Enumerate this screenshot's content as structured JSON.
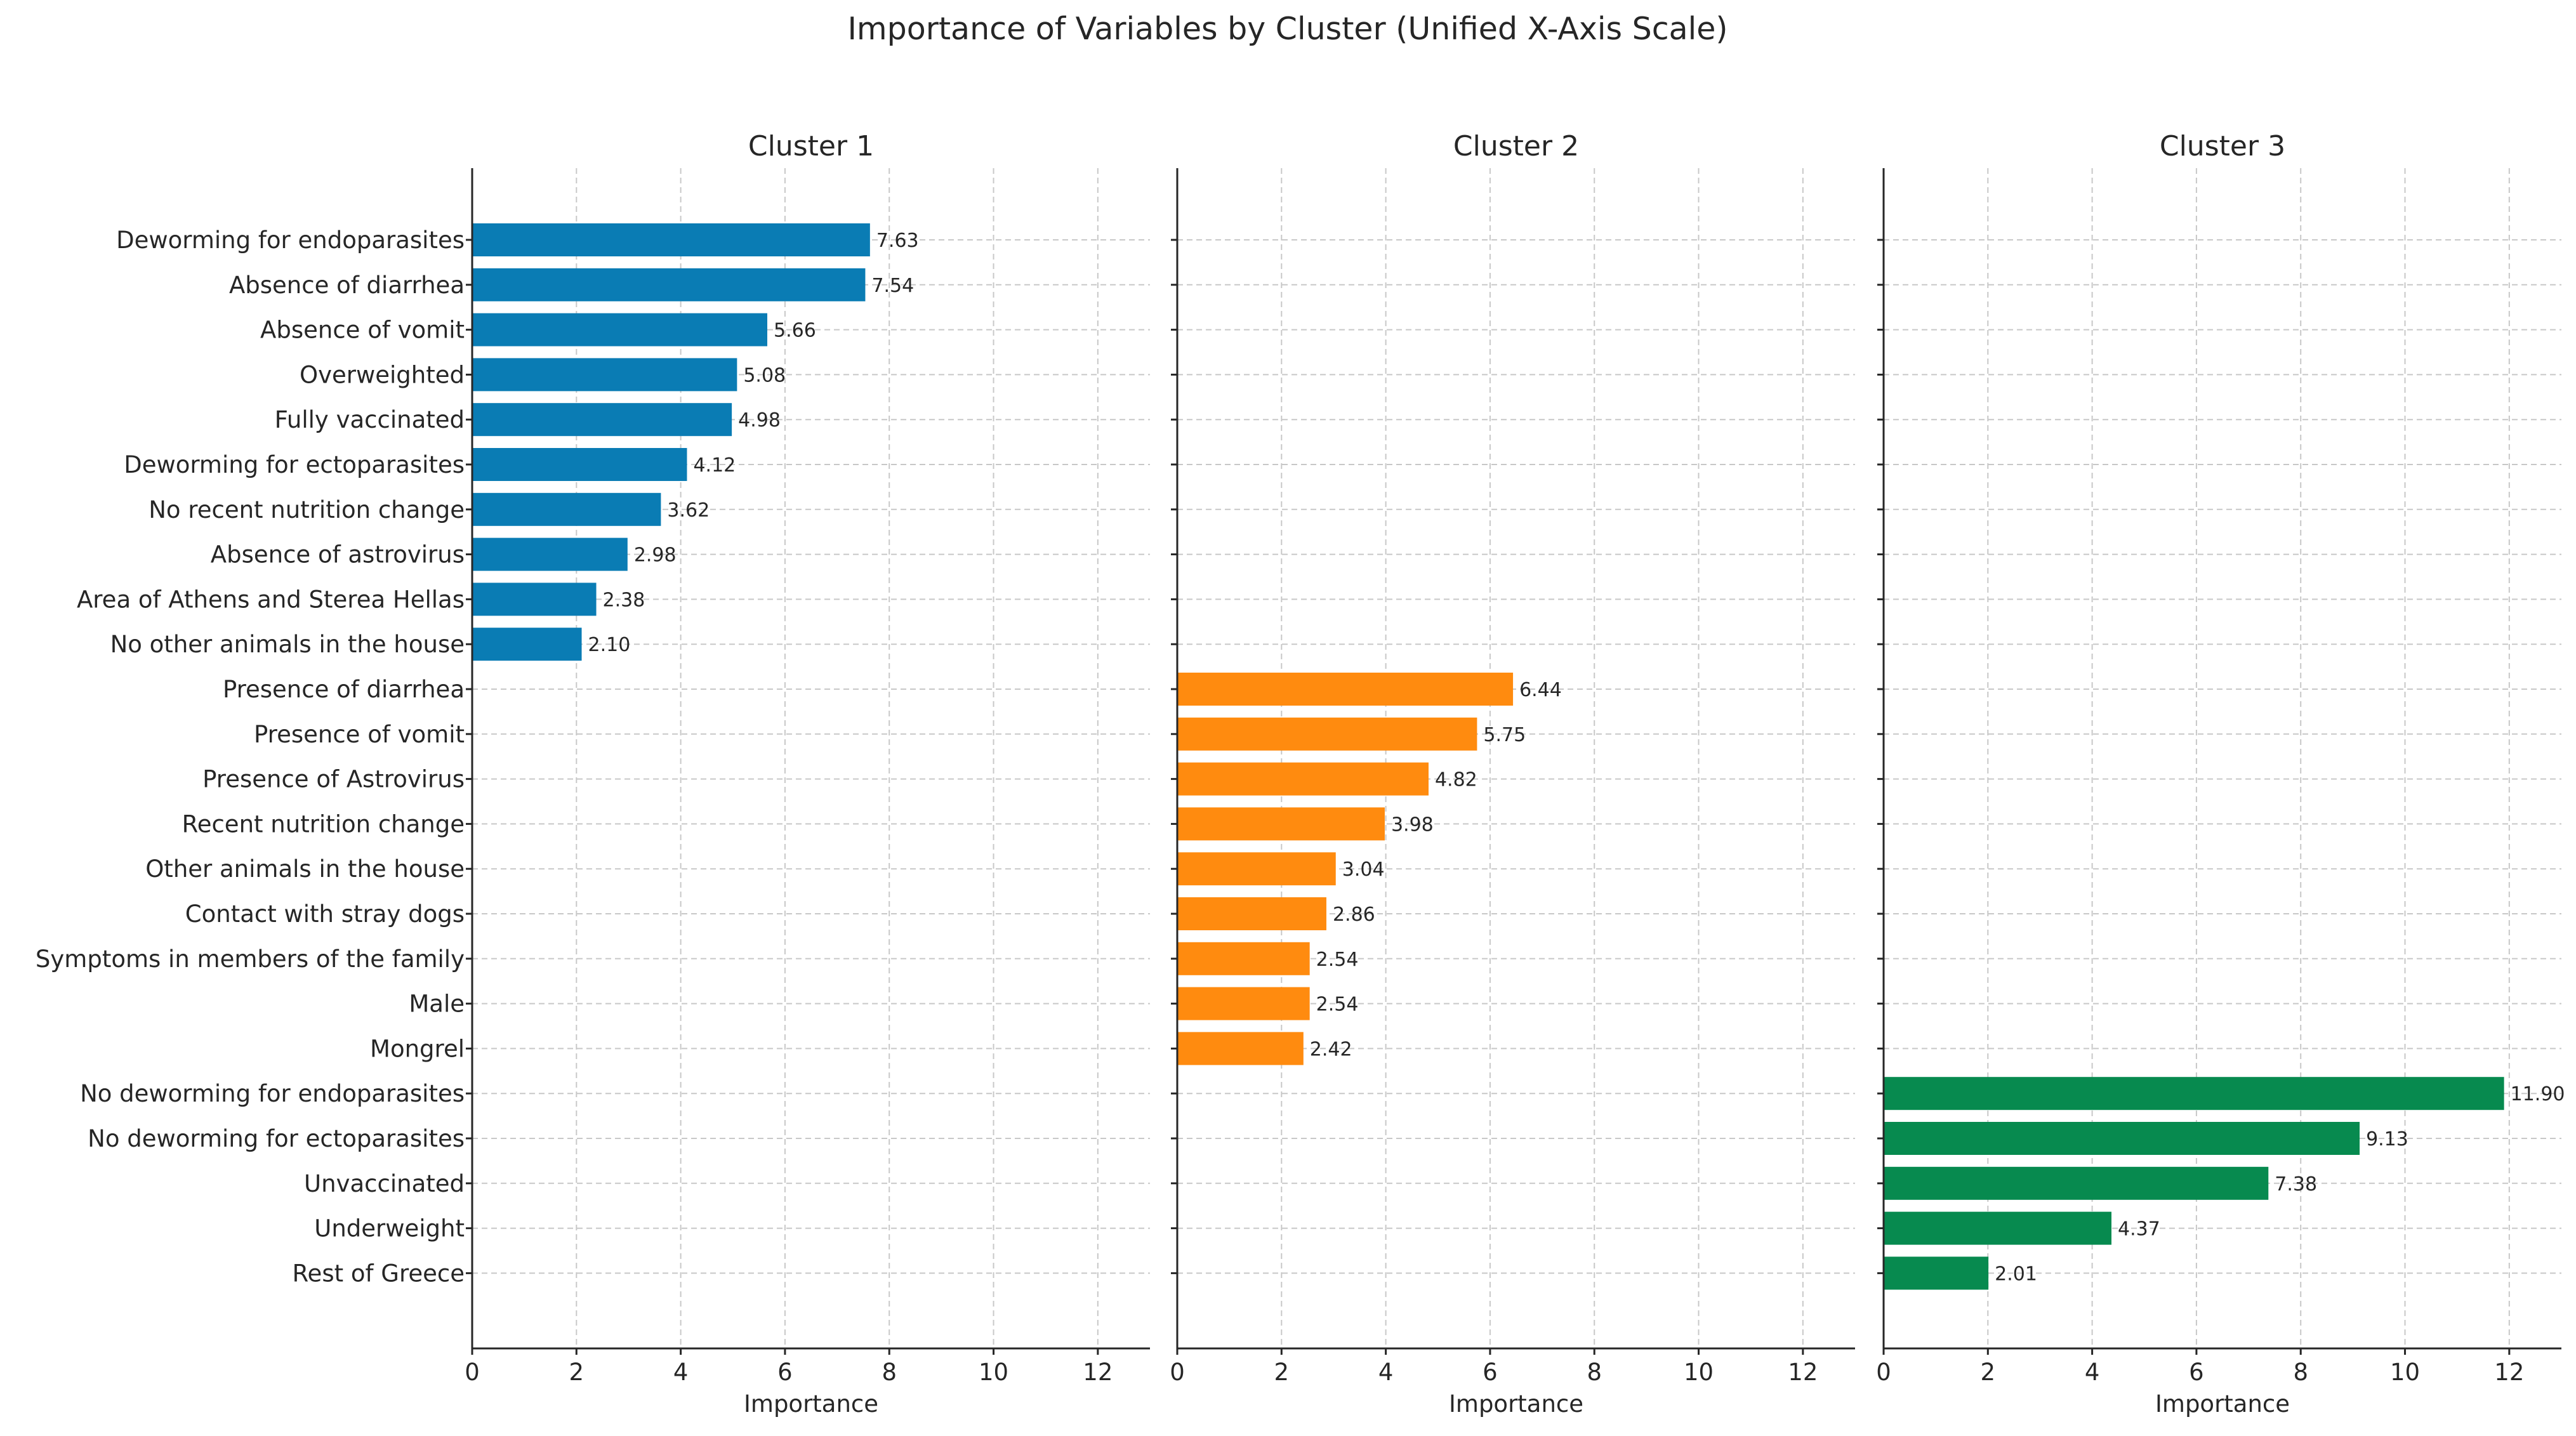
{
  "chart_data": {
    "type": "bar",
    "orientation": "horizontal",
    "title": "Importance of Variables by Cluster (Unified X-Axis Scale)",
    "xlim": [
      0,
      13
    ],
    "xticks": [
      0,
      2,
      4,
      6,
      8,
      10,
      12
    ],
    "grid": true,
    "categories": [
      "Deworming for endoparasites",
      "Absence of diarrhea",
      "Absence of vomit",
      "Overweighted",
      "Fully vaccinated",
      "Deworming for ectoparasites",
      "No recent nutrition change",
      "Absence of astrovirus",
      "Area of Athens and Sterea Hellas",
      "No other animals in the house",
      "Presence of diarrhea",
      "Presence of vomit",
      "Presence of Astrovirus",
      "Recent nutrition change",
      "Other animals in the house",
      "Contact with stray dogs",
      "Symptoms in members of the family",
      "Male",
      "Mongrel",
      "No deworming for endoparasites",
      "No deworming for ectoparasites",
      "Unvaccinated",
      "Underweight",
      "Rest of Greece"
    ],
    "panels": [
      {
        "title": "Cluster 1",
        "xlabel": "Importance",
        "color": "#0A7CB4",
        "bars": [
          {
            "category": "Deworming for endoparasites",
            "value": 7.63,
            "label": "7.63"
          },
          {
            "category": "Absence of diarrhea",
            "value": 7.54,
            "label": "7.54"
          },
          {
            "category": "Absence of vomit",
            "value": 5.66,
            "label": "5.66"
          },
          {
            "category": "Overweighted",
            "value": 5.08,
            "label": "5.08"
          },
          {
            "category": "Fully vaccinated",
            "value": 4.98,
            "label": "4.98"
          },
          {
            "category": "Deworming for ectoparasites",
            "value": 4.12,
            "label": "4.12"
          },
          {
            "category": "No recent nutrition change",
            "value": 3.62,
            "label": "3.62"
          },
          {
            "category": "Absence of astrovirus",
            "value": 2.98,
            "label": "2.98"
          },
          {
            "category": "Area of Athens and Sterea Hellas",
            "value": 2.38,
            "label": "2.38"
          },
          {
            "category": "No other animals in the house",
            "value": 2.1,
            "label": "2.10"
          }
        ]
      },
      {
        "title": "Cluster 2",
        "xlabel": "Importance",
        "color": "#FF8B0F",
        "bars": [
          {
            "category": "Presence of diarrhea",
            "value": 6.44,
            "label": "6.44"
          },
          {
            "category": "Presence of vomit",
            "value": 5.75,
            "label": "5.75"
          },
          {
            "category": "Presence of Astrovirus",
            "value": 4.82,
            "label": "4.82"
          },
          {
            "category": "Recent nutrition change",
            "value": 3.98,
            "label": "3.98"
          },
          {
            "category": "Other animals in the house",
            "value": 3.04,
            "label": "3.04"
          },
          {
            "category": "Contact with stray dogs",
            "value": 2.86,
            "label": "2.86"
          },
          {
            "category": "Symptoms in members of the family",
            "value": 2.54,
            "label": "2.54"
          },
          {
            "category": "Male",
            "value": 2.54,
            "label": "2.54"
          },
          {
            "category": "Mongrel",
            "value": 2.42,
            "label": "2.42"
          }
        ]
      },
      {
        "title": "Cluster 3",
        "xlabel": "Importance",
        "color": "#078A4F",
        "bars": [
          {
            "category": "No deworming for endoparasites",
            "value": 11.9,
            "label": "11.90"
          },
          {
            "category": "No deworming for ectoparasites",
            "value": 9.13,
            "label": "9.13"
          },
          {
            "category": "Unvaccinated",
            "value": 7.38,
            "label": "7.38"
          },
          {
            "category": "Underweight",
            "value": 4.37,
            "label": "4.37"
          },
          {
            "category": "Rest of Greece",
            "value": 2.01,
            "label": "2.01"
          }
        ]
      }
    ]
  }
}
